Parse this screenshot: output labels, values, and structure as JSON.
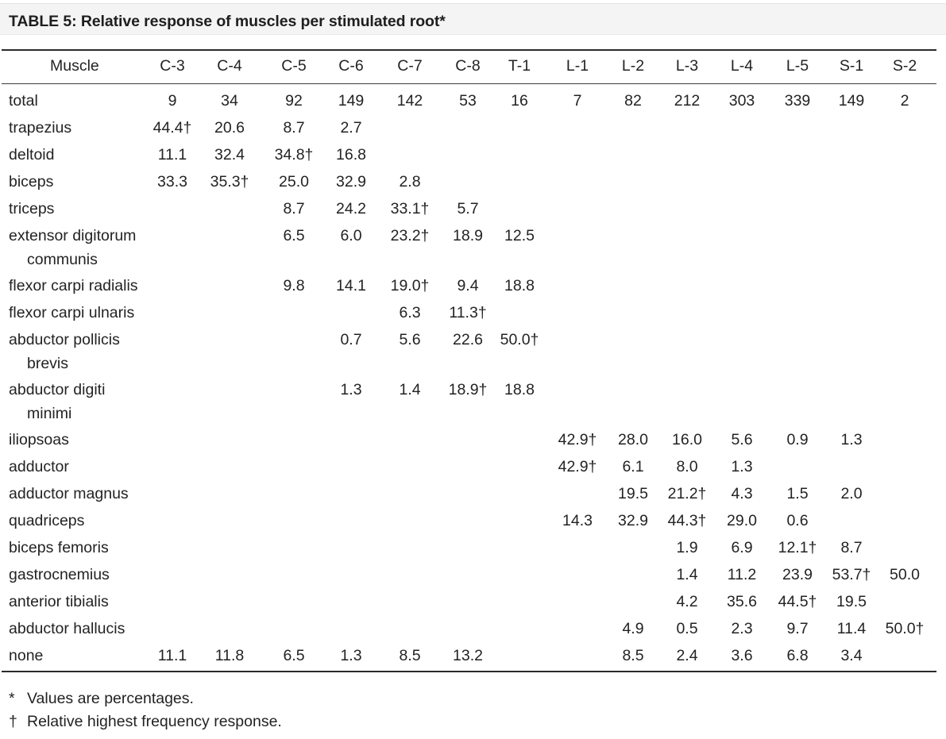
{
  "table": {
    "title": "TABLE 5: Relative response of muscles per stimulated root*",
    "header_label": "Muscle",
    "columns": [
      "C-3",
      "C-4",
      "C-5",
      "C-6",
      "C-7",
      "C-8",
      "T-1",
      "L-1",
      "L-2",
      "L-3",
      "L-4",
      "L-5",
      "S-1",
      "S-2"
    ],
    "rows": [
      {
        "label": [
          "total"
        ],
        "values": [
          "9",
          "34",
          "92",
          "149",
          "142",
          "53",
          "16",
          "7",
          "82",
          "212",
          "303",
          "339",
          "149",
          "2"
        ]
      },
      {
        "label": [
          "trapezius"
        ],
        "values": [
          "44.4†",
          "20.6",
          "8.7",
          "2.7",
          "",
          "",
          "",
          "",
          "",
          "",
          "",
          "",
          "",
          ""
        ]
      },
      {
        "label": [
          "deltoid"
        ],
        "values": [
          "11.1",
          "32.4",
          "34.8†",
          "16.8",
          "",
          "",
          "",
          "",
          "",
          "",
          "",
          "",
          "",
          ""
        ]
      },
      {
        "label": [
          "biceps"
        ],
        "values": [
          "33.3",
          "35.3†",
          "25.0",
          "32.9",
          "2.8",
          "",
          "",
          "",
          "",
          "",
          "",
          "",
          "",
          ""
        ]
      },
      {
        "label": [
          "triceps"
        ],
        "values": [
          "",
          "",
          "8.7",
          "24.2",
          "33.1†",
          "5.7",
          "",
          "",
          "",
          "",
          "",
          "",
          "",
          ""
        ]
      },
      {
        "label": [
          "extensor digitorum",
          "communis"
        ],
        "values": [
          "",
          "",
          "6.5",
          "6.0",
          "23.2†",
          "18.9",
          "12.5",
          "",
          "",
          "",
          "",
          "",
          "",
          ""
        ]
      },
      {
        "label": [
          "flexor carpi radialis"
        ],
        "values": [
          "",
          "",
          "9.8",
          "14.1",
          "19.0†",
          "9.4",
          "18.8",
          "",
          "",
          "",
          "",
          "",
          "",
          ""
        ]
      },
      {
        "label": [
          "flexor carpi ulnaris"
        ],
        "values": [
          "",
          "",
          "",
          "",
          "6.3",
          "11.3†",
          "",
          "",
          "",
          "",
          "",
          "",
          "",
          ""
        ]
      },
      {
        "label": [
          "abductor pollicis",
          "brevis"
        ],
        "values": [
          "",
          "",
          "",
          "0.7",
          "5.6",
          "22.6",
          "50.0†",
          "",
          "",
          "",
          "",
          "",
          "",
          ""
        ]
      },
      {
        "label": [
          "abductor digiti",
          "minimi"
        ],
        "values": [
          "",
          "",
          "",
          "1.3",
          "1.4",
          "18.9†",
          "18.8",
          "",
          "",
          "",
          "",
          "",
          "",
          ""
        ]
      },
      {
        "label": [
          "iliopsoas"
        ],
        "values": [
          "",
          "",
          "",
          "",
          "",
          "",
          "",
          "42.9†",
          "28.0",
          "16.0",
          "5.6",
          "0.9",
          "1.3",
          ""
        ]
      },
      {
        "label": [
          "adductor"
        ],
        "values": [
          "",
          "",
          "",
          "",
          "",
          "",
          "",
          "42.9†",
          "6.1",
          "8.0",
          "1.3",
          "",
          "",
          ""
        ]
      },
      {
        "label": [
          "adductor magnus"
        ],
        "values": [
          "",
          "",
          "",
          "",
          "",
          "",
          "",
          "",
          "19.5",
          "21.2†",
          "4.3",
          "1.5",
          "2.0",
          ""
        ]
      },
      {
        "label": [
          "quadriceps"
        ],
        "values": [
          "",
          "",
          "",
          "",
          "",
          "",
          "",
          "14.3",
          "32.9",
          "44.3†",
          "29.0",
          "0.6",
          "",
          ""
        ]
      },
      {
        "label": [
          "biceps femoris"
        ],
        "values": [
          "",
          "",
          "",
          "",
          "",
          "",
          "",
          "",
          "",
          "1.9",
          "6.9",
          "12.1†",
          "8.7",
          ""
        ]
      },
      {
        "label": [
          "gastrocnemius"
        ],
        "values": [
          "",
          "",
          "",
          "",
          "",
          "",
          "",
          "",
          "",
          "1.4",
          "11.2",
          "23.9",
          "53.7†",
          "50.0"
        ]
      },
      {
        "label": [
          "anterior tibialis"
        ],
        "values": [
          "",
          "",
          "",
          "",
          "",
          "",
          "",
          "",
          "",
          "4.2",
          "35.6",
          "44.5†",
          "19.5",
          ""
        ]
      },
      {
        "label": [
          "abductor hallucis"
        ],
        "values": [
          "",
          "",
          "",
          "",
          "",
          "",
          "",
          "",
          "4.9",
          "0.5",
          "2.3",
          "9.7",
          "11.4",
          "50.0†"
        ]
      },
      {
        "label": [
          "none"
        ],
        "values": [
          "11.1",
          "11.8",
          "6.5",
          "1.3",
          "8.5",
          "13.2",
          "",
          "",
          "8.5",
          "2.4",
          "3.6",
          "6.8",
          "3.4",
          ""
        ]
      }
    ],
    "footnotes": [
      {
        "symbol": "*",
        "text": "Values are percentages."
      },
      {
        "symbol": "†",
        "text": "Relative highest frequency response."
      }
    ]
  }
}
